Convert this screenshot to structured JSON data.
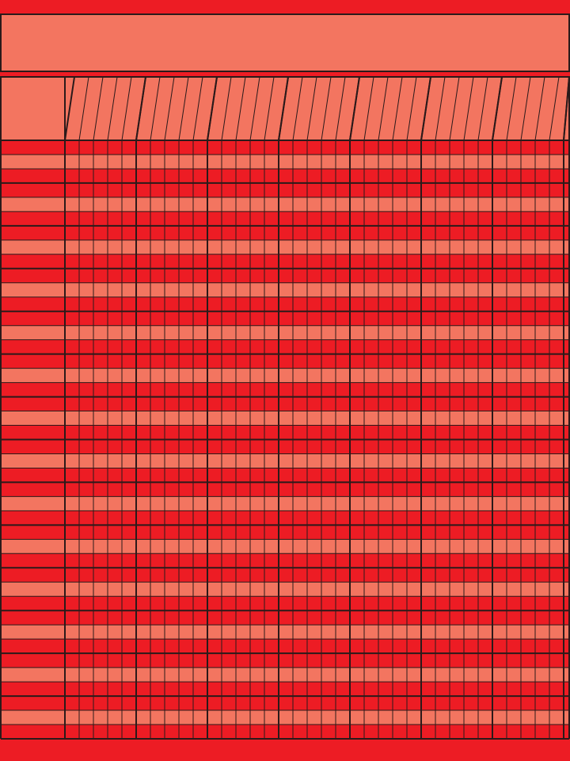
{
  "chart": {
    "title": "",
    "name_column_header": "",
    "group_count": 8,
    "subcolumns_per_group": 5,
    "row_count": 42,
    "row_band_pattern": [
      "dark",
      "light",
      "dark"
    ],
    "colors": {
      "frame": "#ED1C24",
      "dark_row": "#ED1C24",
      "light_row": "#F37560",
      "title_bar": "#F37560",
      "header": "#F37560",
      "line": "#2B1A1A"
    }
  }
}
